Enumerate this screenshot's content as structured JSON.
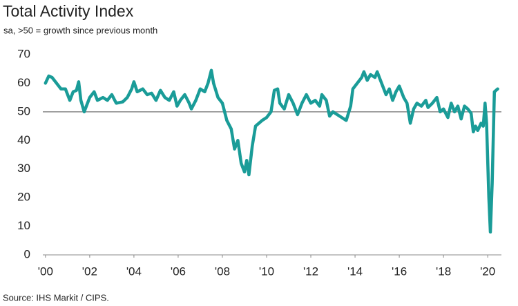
{
  "chart_data": {
    "type": "line",
    "title": "Total Activity Index",
    "subtitle": "sa, >50 = growth since previous month",
    "source": "Source: IHS Markit / CIPS.",
    "color": "#1a9c98",
    "reference_line": 50,
    "xlim": [
      1999.88,
      2020.62
    ],
    "ylim": [
      0,
      70
    ],
    "yticks": [
      0,
      10,
      20,
      30,
      40,
      50,
      60,
      70
    ],
    "xticks": [
      {
        "value": 2000,
        "label": "'00"
      },
      {
        "value": 2002,
        "label": "'02"
      },
      {
        "value": 2004,
        "label": "'04"
      },
      {
        "value": 2006,
        "label": "'06"
      },
      {
        "value": 2008,
        "label": "'08"
      },
      {
        "value": 2010,
        "label": "'10"
      },
      {
        "value": 2012,
        "label": "'12"
      },
      {
        "value": 2014,
        "label": "'14"
      },
      {
        "value": 2016,
        "label": "'16"
      },
      {
        "value": 2018,
        "label": "'18"
      },
      {
        "value": 2020,
        "label": "'20"
      }
    ],
    "x": [
      2000.0,
      2000.15,
      2000.3,
      2000.5,
      2000.7,
      2000.9,
      2001.1,
      2001.25,
      2001.4,
      2001.5,
      2001.6,
      2001.75,
      2001.85,
      2002.0,
      2002.2,
      2002.35,
      2002.6,
      2002.8,
      2003.0,
      2003.2,
      2003.5,
      2003.7,
      2003.9,
      2004.0,
      2004.15,
      2004.4,
      2004.6,
      2004.8,
      2005.0,
      2005.2,
      2005.4,
      2005.6,
      2005.8,
      2005.95,
      2006.1,
      2006.3,
      2006.5,
      2006.6,
      2006.8,
      2007.0,
      2007.2,
      2007.35,
      2007.5,
      2007.6,
      2007.8,
      2008.0,
      2008.2,
      2008.4,
      2008.55,
      2008.7,
      2008.85,
      2009.0,
      2009.1,
      2009.2,
      2009.35,
      2009.5,
      2009.65,
      2009.8,
      2010.0,
      2010.2,
      2010.35,
      2010.5,
      2010.6,
      2010.8,
      2011.0,
      2011.2,
      2011.4,
      2011.6,
      2011.8,
      2012.0,
      2012.2,
      2012.4,
      2012.5,
      2012.7,
      2012.85,
      2013.0,
      2013.2,
      2013.4,
      2013.6,
      2013.8,
      2013.9,
      2014.1,
      2014.3,
      2014.4,
      2014.55,
      2014.7,
      2014.9,
      2015.0,
      2015.2,
      2015.4,
      2015.55,
      2015.7,
      2015.85,
      2016.0,
      2016.2,
      2016.35,
      2016.5,
      2016.65,
      2016.8,
      2017.0,
      2017.2,
      2017.3,
      2017.5,
      2017.7,
      2017.85,
      2018.0,
      2018.2,
      2018.35,
      2018.5,
      2018.65,
      2018.8,
      2018.95,
      2019.1,
      2019.25,
      2019.35,
      2019.45,
      2019.55,
      2019.7,
      2019.8,
      2019.88,
      2019.95,
      2020.05,
      2020.12,
      2020.2,
      2020.3,
      2020.45
    ],
    "values": [
      60,
      62.5,
      62,
      60,
      58,
      58,
      54,
      57,
      57.5,
      60.5,
      54,
      50,
      52,
      55,
      57,
      54,
      55,
      54,
      56,
      53,
      53.5,
      55,
      58,
      60.5,
      57,
      58,
      56,
      56.5,
      54,
      57.5,
      55,
      54,
      57,
      52,
      54,
      56,
      53,
      51,
      54,
      58,
      57,
      60,
      64.5,
      60,
      55,
      53,
      47,
      44,
      37,
      40,
      32,
      29,
      33,
      28,
      38,
      45,
      46,
      47,
      48,
      50,
      57.5,
      58,
      53,
      51,
      56,
      53,
      49,
      53,
      56,
      53,
      54,
      52,
      56,
      54,
      48.5,
      50,
      49,
      48,
      47,
      52,
      58,
      60,
      62,
      64,
      61,
      63,
      62,
      64,
      60,
      56,
      58,
      54,
      57,
      59,
      55,
      53,
      46,
      51,
      53,
      52,
      54,
      51.5,
      53,
      55,
      50,
      51,
      48,
      53,
      50,
      52,
      47.5,
      52,
      51,
      49.5,
      43,
      45,
      43.5,
      46,
      45,
      53,
      46,
      20,
      8,
      25,
      57,
      58
    ]
  }
}
